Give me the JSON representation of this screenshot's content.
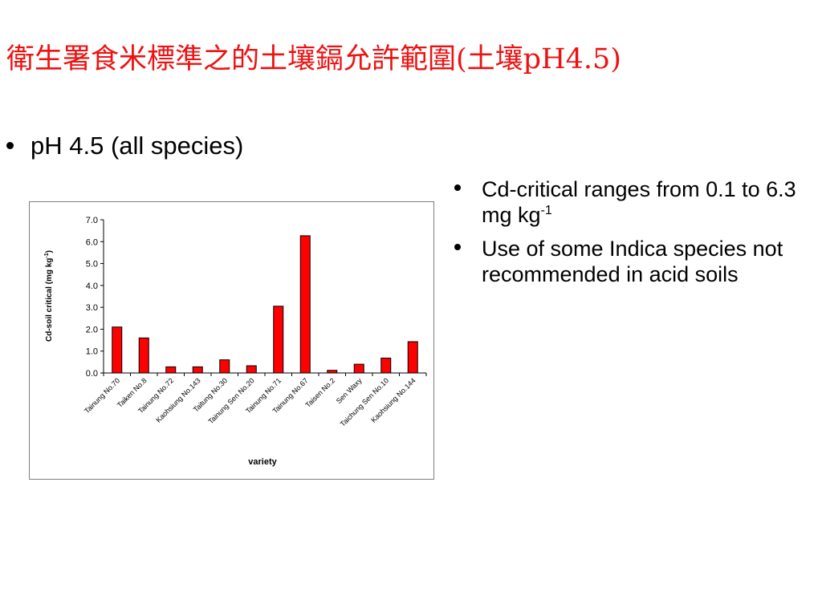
{
  "slide": {
    "title": "衛生署食米標準之的土壤鎘允許範圍(土壤pH4.5)",
    "main_bullet": "pH 4.5 (all species)",
    "right_bullets": [
      {
        "text": "Cd-critical ranges from 0.1 to 6.3 mg kg",
        "sup": "-1"
      },
      {
        "text": "Use of some Indica species not recommended in acid soils",
        "sup": ""
      }
    ]
  },
  "chart_data": {
    "type": "bar",
    "xlabel": "variety",
    "ylabel": "Cd-soil critical (mg kg",
    "ylabel_sup": "-1",
    "ylabel_end": ")",
    "ylim": [
      0,
      7
    ],
    "yticks": [
      "0.0",
      "1.0",
      "2.0",
      "3.0",
      "4.0",
      "5.0",
      "6.0",
      "7.0"
    ],
    "bar_color": "#ff0000",
    "grid": false,
    "categories": [
      "Tainung No.70",
      "Taiken No.8",
      "Tainung No.72",
      "Kaohsiung No.143",
      "Taitung No.30",
      "Tainung Sen No.20",
      "Tainung No.71",
      "Tainung No.67",
      "Taisen No.2",
      "Sen Waxy",
      "Taichung Sen No.10",
      "Kaohsiung No.144"
    ],
    "values": [
      2.1,
      1.6,
      0.28,
      0.28,
      0.6,
      0.33,
      3.05,
      6.27,
      0.12,
      0.4,
      0.68,
      1.43
    ]
  }
}
